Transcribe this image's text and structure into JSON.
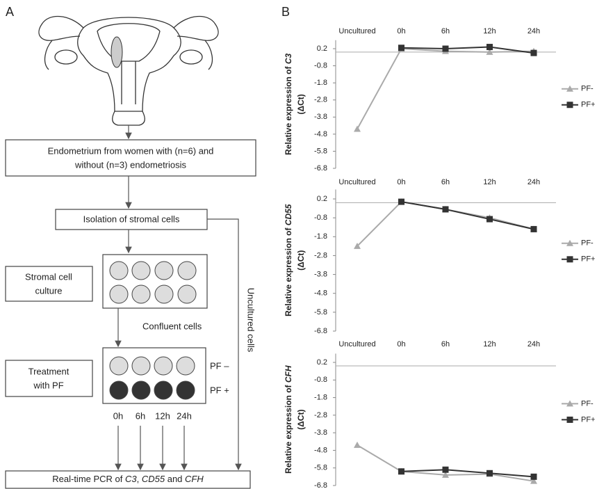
{
  "panel_a": {
    "label": "A",
    "endometrium": [
      "Endometrium from women with (n=6) and",
      "without (n=3) endometriosis"
    ],
    "isolation": "Isolation of stromal cells",
    "culture": [
      "Stromal cell",
      "culture"
    ],
    "confluent": "Confluent cells",
    "treatment": [
      "Treatment",
      "with PF"
    ],
    "pf_minus": "PF –",
    "pf_plus": "PF +",
    "times": [
      "0h",
      "6h",
      "12h",
      "24h"
    ],
    "uncultured": "Uncultured cells",
    "pcr": [
      "Real-time PCR of ",
      "C3",
      ", ",
      "CD55",
      " and ",
      "CFH"
    ]
  },
  "panel_b": {
    "label": "B"
  },
  "chart_data": [
    {
      "type": "line",
      "y_label": [
        "Relative expression of ",
        "C3",
        "(ΔCt)"
      ],
      "categories": [
        "Uncultured",
        "0h",
        "6h",
        "12h",
        "24h"
      ],
      "series": [
        {
          "name": "PF-",
          "color": "#aaaaaa",
          "marker": "triangle",
          "values": [
            -4.5,
            0.2,
            0.05,
            0.0,
            0.05
          ]
        },
        {
          "name": "PF+",
          "color": "#333333",
          "marker": "square",
          "values": [
            null,
            0.25,
            0.2,
            0.3,
            -0.05
          ]
        }
      ],
      "ylim": [
        -6.8,
        0.7
      ],
      "yticks": [
        0.2,
        -0.8,
        -1.8,
        -2.8,
        -3.8,
        -4.8,
        -5.8,
        -6.8
      ],
      "legend": "right"
    },
    {
      "type": "line",
      "y_label": [
        "Relative expression of ",
        "CD55",
        "(ΔCt)"
      ],
      "categories": [
        "Uncultured",
        "0h",
        "6h",
        "12h",
        "24h"
      ],
      "series": [
        {
          "name": "PF-",
          "color": "#aaaaaa",
          "marker": "triangle",
          "values": [
            -2.3,
            0.05,
            -0.35,
            -0.8,
            -1.4
          ]
        },
        {
          "name": "PF+",
          "color": "#333333",
          "marker": "square",
          "values": [
            null,
            0.05,
            -0.35,
            -0.87,
            -1.4
          ]
        }
      ],
      "ylim": [
        -6.8,
        0.7
      ],
      "yticks": [
        0.2,
        -0.8,
        -1.8,
        -2.8,
        -3.8,
        -4.8,
        -5.8,
        -6.8
      ],
      "legend": "right"
    },
    {
      "type": "line",
      "y_label": [
        "Relative expression of ",
        "CFH",
        "(ΔCt)"
      ],
      "categories": [
        "Uncultured",
        "0h",
        "6h",
        "12h",
        "24h"
      ],
      "series": [
        {
          "name": "PF-",
          "color": "#aaaaaa",
          "marker": "triangle",
          "values": [
            -4.5,
            -6.0,
            -6.2,
            -6.15,
            -6.55
          ]
        },
        {
          "name": "PF+",
          "color": "#333333",
          "marker": "square",
          "values": [
            null,
            -6.0,
            -5.9,
            -6.1,
            -6.3
          ]
        }
      ],
      "ylim": [
        -6.8,
        0.7
      ],
      "yticks": [
        0.2,
        -0.8,
        -1.8,
        -2.8,
        -3.8,
        -4.8,
        -5.8,
        -6.8
      ],
      "legend": "right"
    }
  ]
}
